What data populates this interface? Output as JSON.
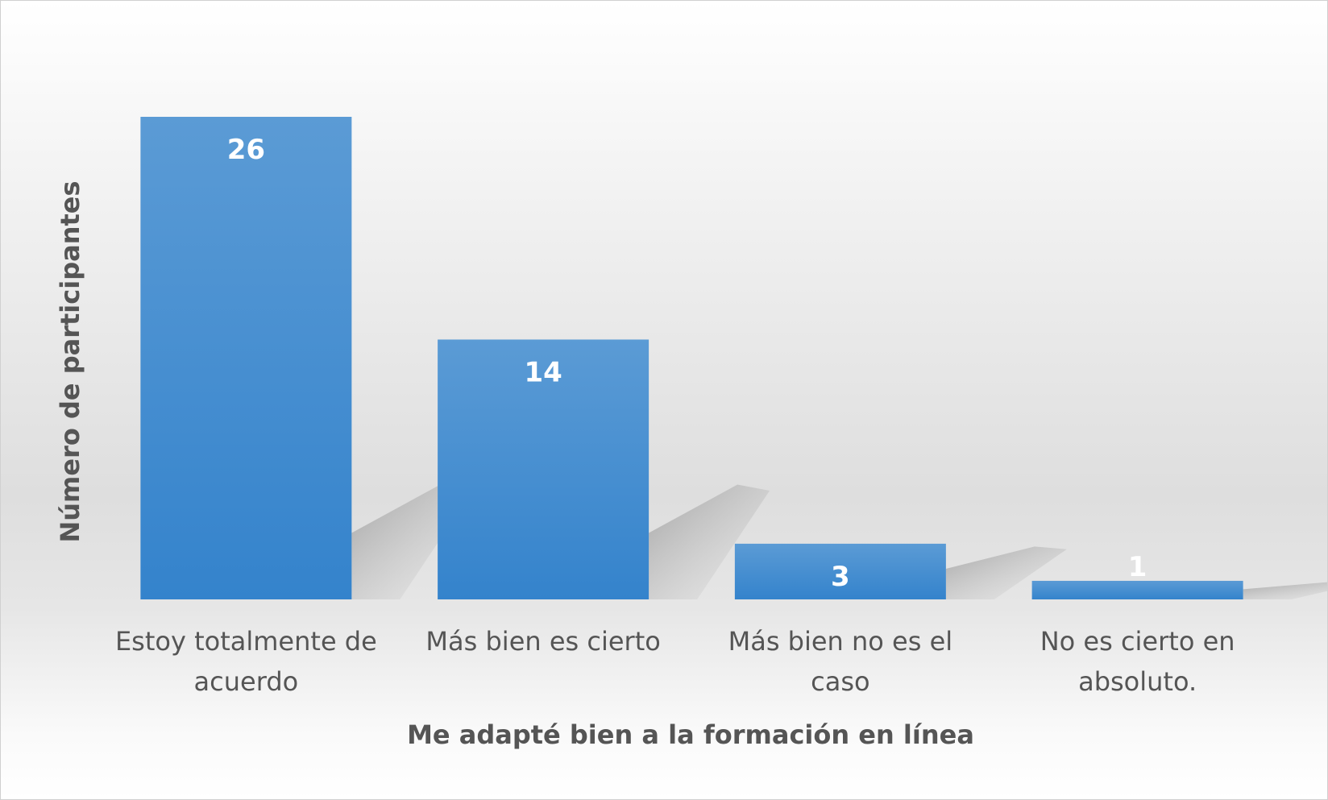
{
  "chart_data": {
    "type": "bar",
    "title": "",
    "xlabel": "Me adapté bien a la formación en línea",
    "ylabel": "Número de participantes",
    "categories": [
      [
        "Estoy totalmente de",
        "acuerdo"
      ],
      [
        "Más bien es cierto"
      ],
      [
        "Más bien no es el",
        "caso"
      ],
      [
        "No es cierto en",
        "absoluto."
      ]
    ],
    "values": [
      26,
      14,
      3,
      1
    ],
    "ylim": [
      0,
      26
    ],
    "grid": false,
    "legend": "none",
    "bar_color_top": "#5b9bd5",
    "bar_color_bottom": "#3483cc",
    "data_label_color": "#ffffff",
    "text_color": "#555555"
  }
}
